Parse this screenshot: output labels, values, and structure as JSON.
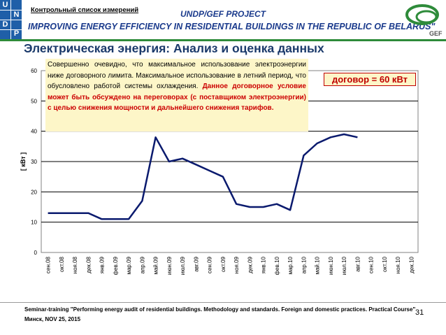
{
  "header": {
    "checklist_label": "Контрольный список измерений",
    "project_title": "UNDP/GEF PROJECT",
    "project_subtitle": "IMPROVING ENERGY EFFICIENCY IN RESIDENTIAL BUILDINGS IN THE REPUBLIC OF BELARUS\"",
    "undp_letters": [
      "U",
      "N",
      "D",
      "P"
    ],
    "gef_text": "GEF"
  },
  "slide_title": "Электрическая энергия: Анализ и оценка данных",
  "note": {
    "text": "Совершенно очевидно, что максимальное использование электроэнергии ниже договорного лимита. Максимальное использование в летний период, что обусловлено работой системы охлаждения.",
    "highlight": "Данное договорное условие может быть обсуждено на переговорах (с поставщиком электроэнергии) с целью снижения мощности и дальнейшего снижения тарифов."
  },
  "contract_label": "договор = 60 кВт",
  "chart_data": {
    "type": "line",
    "title": "",
    "xlabel": "",
    "ylabel": "[ кВт ]",
    "ylim": [
      0,
      60
    ],
    "yticks": [
      0,
      10,
      20,
      30,
      40,
      50,
      60
    ],
    "grid": true,
    "categories": [
      "сен.08",
      "окт.08",
      "ноя.08",
      "дек.08",
      "янв.09",
      "фев.09",
      "мар.09",
      "апр.09",
      "май.09",
      "июн.09",
      "июл.09",
      "авг.09",
      "сен.09",
      "окт.09",
      "ноя.09",
      "дек.09",
      "янв.10",
      "фев.10",
      "мар.10",
      "апр.10",
      "май.10",
      "июн.10",
      "июл.10",
      "авг.10",
      "сен.10",
      "окт.10",
      "ноя.10",
      "дек.10"
    ],
    "series": [
      {
        "values": [
          13,
          13,
          13,
          13,
          11,
          11,
          11,
          17,
          38,
          30,
          31,
          29,
          27,
          25,
          16,
          15,
          15,
          16,
          14,
          32,
          36,
          38,
          39,
          38,
          null,
          null,
          null,
          null
        ]
      }
    ],
    "colors": {
      "line": "#0a1a6e",
      "plot_bg": "#ffffff",
      "frame": "#808080",
      "grid": "#000000"
    }
  },
  "footer": {
    "line1": "Seminar-training \"Performing energy audit of residential buildings. Methodology and standards. Foreign and domestic practices. Practical Course\"",
    "line2": "Минск, NOV 25, 2015",
    "page_number": "31"
  },
  "colors": {
    "brand_blue": "#1a3a8c",
    "undp_blue": "#1f5fa8",
    "accent_green": "#2e8b3a",
    "title_color": "#1b3a6b",
    "alert_red": "#c00000",
    "note_bg": "#fdf6c8"
  }
}
